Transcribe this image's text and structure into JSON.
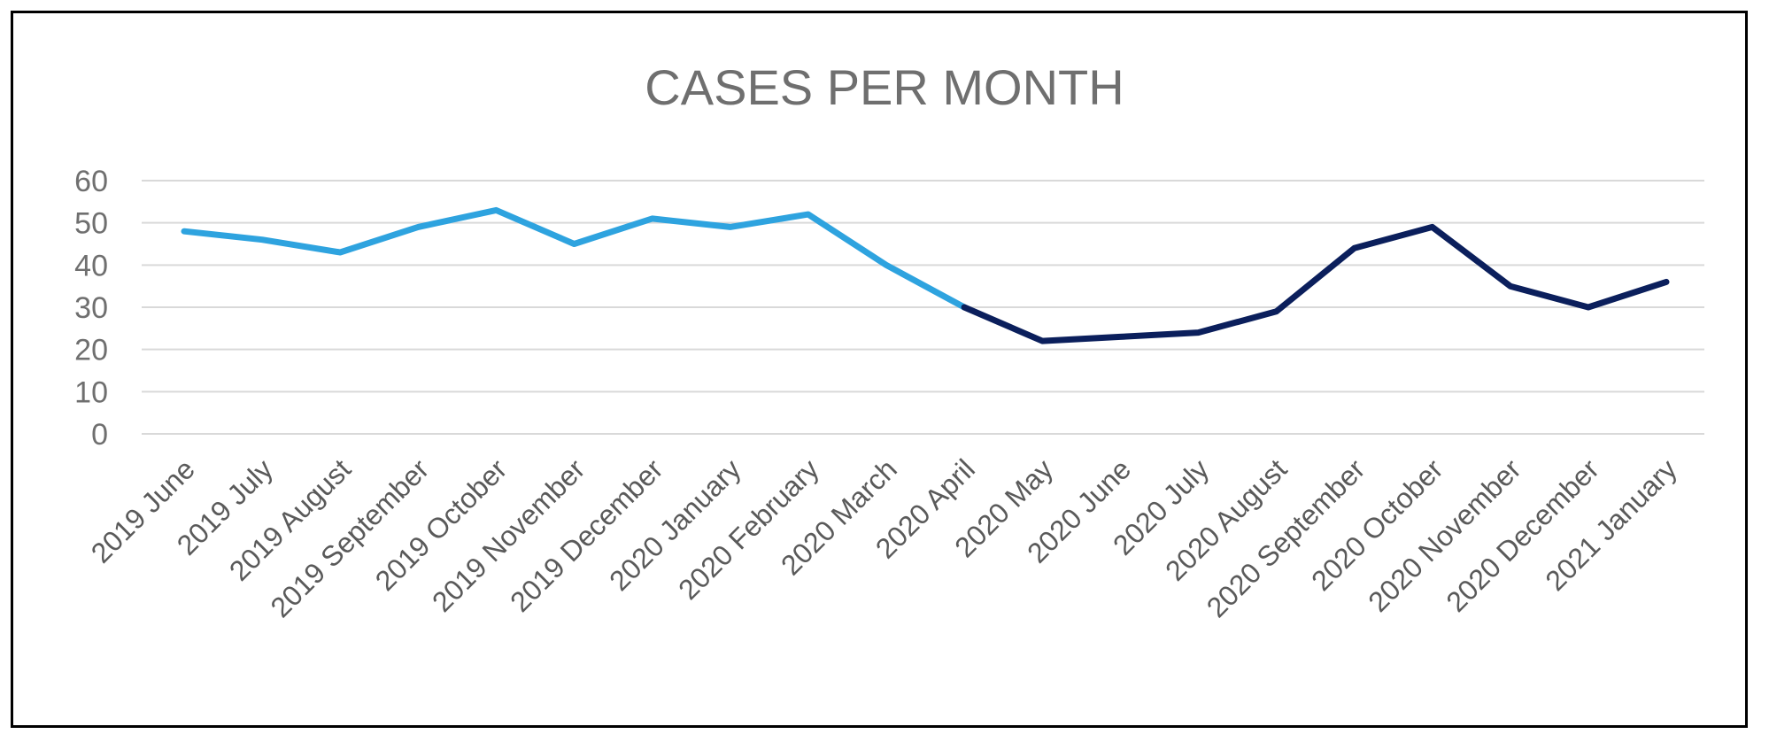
{
  "chart_data": {
    "type": "line",
    "title": "CASES PER MONTH",
    "xlabel": "",
    "ylabel": "",
    "ylim": [
      0,
      60
    ],
    "yticks": [
      0,
      10,
      20,
      30,
      40,
      50,
      60
    ],
    "grid": true,
    "legend": "none",
    "categories": [
      "2019 June",
      "2019 July",
      "2019 August",
      "2019 September",
      "2019 October",
      "2019 November",
      "2019 December",
      "2020 January",
      "2020 February",
      "2020 March",
      "2020 April",
      "2020 May",
      "2020 June",
      "2020 July",
      "2020 August",
      "2020 September",
      "2020 October",
      "2020 November",
      "2020 December",
      "2021 January"
    ],
    "values": [
      48,
      46,
      43,
      49,
      53,
      45,
      51,
      49,
      52,
      40,
      30,
      22,
      23,
      24,
      29,
      44,
      49,
      35,
      30,
      36
    ],
    "segments": [
      {
        "name": "2019 June – 2020 April",
        "from_index": 0,
        "to_index": 10,
        "color": "#2ea3df"
      },
      {
        "name": "2020 April – 2021 January",
        "from_index": 10,
        "to_index": 19,
        "color": "#0b1f5c"
      }
    ],
    "colors": {
      "grid": "#d9d9d9",
      "text": "#6f6f6f",
      "frame": "#000000"
    }
  }
}
